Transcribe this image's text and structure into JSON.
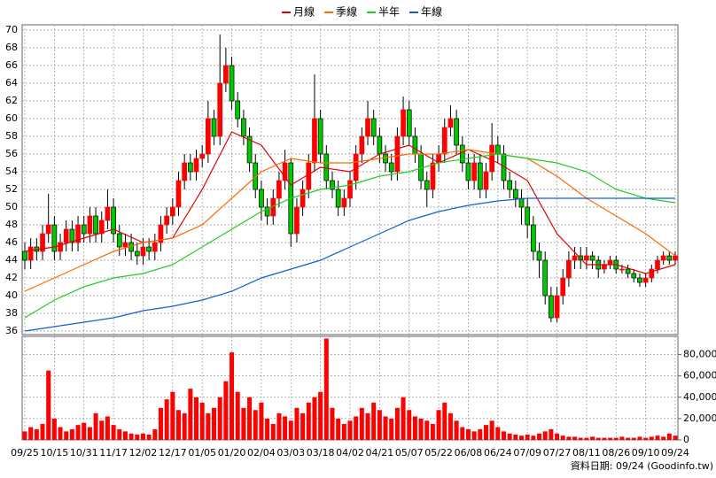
{
  "chart_data": [
    {
      "type": "candlestick",
      "series": [
        {
          "name": "月線",
          "color": "#e00000",
          "x": [
            0,
            5,
            10,
            15,
            20,
            25,
            30,
            35,
            40,
            45,
            50,
            55,
            60,
            65,
            70,
            75,
            80,
            85,
            90,
            95,
            100,
            105,
            110
          ],
          "values": [
            45,
            45.5,
            46.5,
            47.5,
            46,
            46.5,
            52,
            58.5,
            57,
            52.5,
            54.5,
            54,
            56,
            57,
            55,
            56.5,
            55,
            53,
            47,
            43.5,
            43.5,
            42.5,
            43.5
          ]
        },
        {
          "name": "季線",
          "color": "#ff6a00",
          "x": [
            0,
            5,
            10,
            15,
            20,
            25,
            30,
            35,
            40,
            45,
            50,
            55,
            60,
            65,
            70,
            75,
            80,
            85,
            90,
            95,
            100,
            105,
            110
          ],
          "values": [
            40.5,
            42,
            43.5,
            45,
            46,
            46.5,
            48,
            51,
            54,
            55.5,
            55,
            55,
            55.5,
            56,
            56,
            56.5,
            56,
            55.5,
            53.5,
            51,
            49,
            47,
            44.5
          ]
        },
        {
          "name": "半年",
          "color": "#22cc22",
          "x": [
            0,
            5,
            10,
            15,
            20,
            25,
            30,
            35,
            40,
            45,
            50,
            55,
            60,
            65,
            70,
            75,
            80,
            85,
            90,
            95,
            100,
            105,
            110
          ],
          "values": [
            37.5,
            39.5,
            41,
            42,
            42.5,
            43.5,
            45.5,
            47.5,
            49.5,
            51,
            52,
            52.5,
            53.5,
            54,
            55,
            55.5,
            56,
            55.5,
            55,
            54,
            52,
            51,
            50.5
          ]
        },
        {
          "name": "年線",
          "color": "#1060d0",
          "x": [
            0,
            5,
            10,
            15,
            20,
            25,
            30,
            35,
            40,
            45,
            50,
            55,
            60,
            65,
            70,
            75,
            80,
            85,
            90,
            95,
            100,
            105,
            110
          ],
          "values": [
            36,
            36.5,
            37,
            37.5,
            38.3,
            38.8,
            39.5,
            40.5,
            42,
            43,
            44,
            45.5,
            47,
            48.5,
            49.5,
            50.2,
            50.7,
            51,
            51,
            51,
            51,
            51,
            51
          ]
        }
      ],
      "open": [
        45,
        44,
        45.5,
        45,
        47,
        48,
        45,
        46,
        47.5,
        46,
        48,
        47,
        49,
        47,
        48.5,
        50,
        47,
        45.5,
        46,
        45,
        44.5,
        45.5,
        45,
        46,
        48,
        49,
        50,
        53,
        55,
        54,
        55.5,
        56,
        60,
        58,
        64,
        66,
        62,
        60,
        58,
        55,
        52,
        50,
        49,
        51,
        53,
        55,
        47,
        50,
        52,
        55,
        60,
        56,
        53,
        52,
        50,
        51,
        53,
        56,
        58,
        60,
        58,
        56,
        55,
        54,
        58,
        61,
        58,
        56,
        53,
        52,
        55,
        56,
        59,
        60,
        57,
        55,
        53,
        55,
        52,
        54,
        57,
        56,
        53,
        52,
        51,
        50,
        48,
        45,
        44,
        40,
        37.5,
        40,
        42,
        44,
        44.5,
        44,
        44.5,
        44,
        43,
        43.5,
        44,
        43,
        43,
        42.5,
        42,
        41.5,
        42,
        43,
        44,
        44.5,
        44
      ],
      "high": [
        46,
        46.5,
        46.5,
        48,
        51.5,
        49,
        47,
        48.5,
        48.5,
        49,
        49,
        50,
        50,
        49.5,
        52,
        51,
        48,
        47,
        47,
        46,
        46.5,
        46.5,
        47,
        49,
        50,
        51,
        54,
        56,
        56,
        56.5,
        57,
        62,
        61,
        69.5,
        68,
        67,
        63,
        61,
        59,
        56,
        53,
        51,
        52,
        54,
        56.5,
        55.5,
        51,
        53,
        56,
        65,
        61,
        57,
        54,
        53,
        52,
        54,
        57,
        59,
        62,
        61,
        59,
        57,
        56,
        59,
        62.5,
        62,
        59,
        57,
        54,
        56,
        57,
        60,
        61.5,
        61,
        58,
        56,
        56,
        56,
        55,
        59.5,
        58,
        57,
        54,
        53,
        52,
        51,
        49,
        46,
        45,
        41,
        41,
        43,
        45,
        45.5,
        45.5,
        45.5,
        45,
        44.5,
        44,
        44.5,
        44.5,
        43.5,
        43.5,
        43,
        42.5,
        42.5,
        43.5,
        44.5,
        45,
        45,
        45
      ],
      "low": [
        43,
        43,
        44,
        44,
        46,
        44,
        44,
        45,
        45,
        45,
        46,
        46,
        46,
        46,
        47.5,
        46,
        44.5,
        44.5,
        44,
        43.5,
        43.5,
        44,
        44,
        45,
        47,
        48,
        49,
        52,
        53,
        53,
        54.5,
        55,
        57,
        57,
        63,
        61,
        59,
        57,
        54,
        51,
        48.5,
        48,
        48,
        50,
        52,
        45.5,
        46,
        49,
        51,
        54,
        55,
        52,
        51,
        49,
        49,
        50,
        52,
        55,
        57,
        57,
        55,
        54,
        53,
        53,
        57,
        57,
        55,
        52,
        50,
        51,
        54,
        55,
        58,
        56,
        54,
        52,
        52,
        51,
        51,
        53,
        55,
        52,
        51,
        50,
        48,
        46.5,
        44,
        42,
        39,
        37,
        37,
        39,
        41,
        43,
        43,
        43,
        43,
        42,
        42.5,
        43,
        42.5,
        42.5,
        42,
        41.5,
        41,
        41,
        41.5,
        42.5,
        43.5,
        43.5,
        43.5
      ],
      "close": [
        44,
        45.5,
        45,
        47,
        48,
        45,
        46,
        47.5,
        46,
        48,
        47,
        49,
        47,
        48.5,
        50,
        47,
        45.5,
        46,
        45,
        44.5,
        45.5,
        45,
        46,
        48,
        49,
        50,
        53,
        55,
        54,
        55.5,
        56,
        60,
        58,
        64,
        66,
        62,
        60,
        58,
        55,
        52,
        50,
        49,
        51,
        53,
        55,
        47,
        50,
        52,
        55,
        60,
        56,
        53,
        52,
        50,
        51,
        53,
        56,
        58,
        60,
        58,
        56,
        55,
        54,
        58,
        61,
        58,
        56,
        53,
        52,
        55,
        56,
        59,
        60,
        57,
        55,
        53,
        55,
        52,
        54,
        57,
        56,
        53,
        52,
        51,
        50,
        48,
        45,
        44,
        40,
        37.5,
        40,
        42,
        44,
        44.5,
        44,
        44.5,
        44,
        43,
        43.5,
        44,
        43,
        43,
        42.5,
        42,
        41.5,
        42,
        43,
        44,
        44.5,
        44,
        44.5
      ],
      "up_color": "#ff0000",
      "down_color": "#00c800",
      "ylim": [
        35.6,
        70.6
      ],
      "yticks": [
        36,
        38,
        40,
        42,
        44,
        46,
        48,
        50,
        52,
        54,
        56,
        58,
        60,
        62,
        64,
        66,
        68,
        70
      ],
      "grid": true
    },
    {
      "type": "bar",
      "categories": [
        "09/25",
        null,
        null,
        null,
        null,
        "10/15",
        null,
        null,
        null,
        null,
        "10/31",
        null,
        null,
        null,
        null,
        "11/17",
        null,
        null,
        null,
        null,
        "12/02",
        null,
        null,
        null,
        null,
        "12/17",
        null,
        null,
        null,
        null,
        "01/05",
        null,
        null,
        null,
        null,
        "01/20",
        null,
        null,
        null,
        null,
        "02/04",
        null,
        null,
        null,
        null,
        "03/03",
        null,
        null,
        null,
        null,
        "03/18",
        null,
        null,
        null,
        null,
        "04/02",
        null,
        null,
        null,
        null,
        "04/21",
        null,
        null,
        null,
        null,
        "05/07",
        null,
        null,
        null,
        null,
        "05/22",
        null,
        null,
        null,
        null,
        "06/08",
        null,
        null,
        null,
        null,
        "06/24",
        null,
        null,
        null,
        null,
        "07/09",
        null,
        null,
        null,
        null,
        "07/27",
        null,
        null,
        null,
        null,
        "08/11",
        null,
        null,
        null,
        null,
        "08/26",
        null,
        null,
        null,
        null,
        "09/10",
        null,
        null,
        null,
        null,
        "09/24"
      ],
      "values": [
        8000,
        12000,
        10000,
        15000,
        65000,
        20000,
        12000,
        8000,
        10000,
        14000,
        16000,
        12000,
        25000,
        18000,
        22000,
        14000,
        10000,
        8000,
        6000,
        5000,
        6000,
        5000,
        10000,
        30000,
        38000,
        45000,
        28000,
        25000,
        48000,
        40000,
        35000,
        25000,
        30000,
        40000,
        55000,
        82000,
        45000,
        30000,
        40000,
        28000,
        35000,
        20000,
        15000,
        25000,
        22000,
        18000,
        30000,
        25000,
        35000,
        40000,
        45000,
        95000,
        30000,
        20000,
        15000,
        18000,
        22000,
        30000,
        25000,
        35000,
        28000,
        22000,
        20000,
        30000,
        40000,
        28000,
        22000,
        20000,
        18000,
        15000,
        28000,
        35000,
        25000,
        18000,
        12000,
        10000,
        8000,
        10000,
        14000,
        18000,
        12000,
        8000,
        6000,
        5000,
        4000,
        5000,
        4000,
        6000,
        8000,
        10000,
        6000,
        4000,
        3000,
        3000,
        2000,
        2000,
        3000,
        2000,
        2000,
        2000,
        2000,
        3000,
        2000,
        2000,
        3000,
        2000,
        3000,
        4000,
        3000,
        6000,
        4000
      ],
      "color": "#ff0000",
      "ylim": [
        0,
        97000
      ],
      "yticks": [
        0,
        {
          "value": 20000,
          "label": "20,000"
        },
        {
          "value": 40000,
          "label": "40,000"
        },
        {
          "value": 60000,
          "label": "60,000"
        },
        {
          "value": 80000,
          "label": "80,000"
        }
      ],
      "grid": true,
      "note": "資料日期: 09/24 (Goodinfo.tw)"
    }
  ]
}
